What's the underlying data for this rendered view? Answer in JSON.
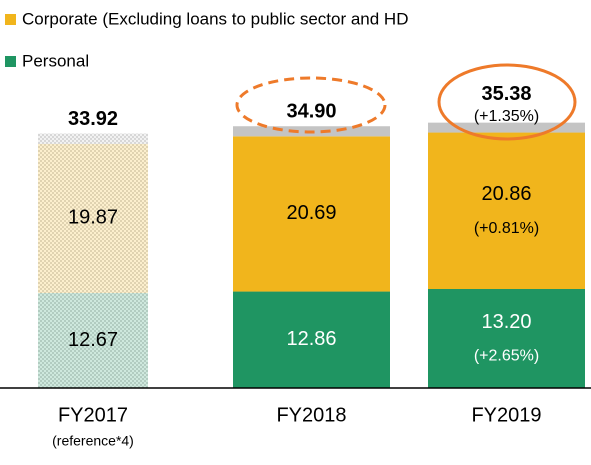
{
  "chart_data": {
    "type": "stacked_bar",
    "categories": [
      "FY2017",
      "FY2018",
      "FY2019"
    ],
    "category_notes": [
      "(reference*4)",
      null,
      null
    ],
    "hatched": [
      true,
      false,
      false
    ],
    "series": [
      {
        "name": "Personal",
        "color": "#1f9562",
        "values": [
          12.67,
          12.86,
          13.2
        ],
        "value_labels": [
          "12.67",
          "12.86",
          "13.20"
        ],
        "changes": [
          null,
          null,
          "(+2.65%)"
        ]
      },
      {
        "name": "Corporate (Excluding loans to public sector and HD",
        "color": "#f1b51c",
        "values": [
          19.87,
          20.69,
          20.86
        ],
        "value_labels": [
          "19.87",
          "20.69",
          "20.86"
        ],
        "changes": [
          null,
          null,
          "(+0.81%)"
        ]
      },
      {
        "color": "#c4c4c4",
        "values": [
          1.38,
          1.35,
          1.32
        ]
      }
    ],
    "totals": [
      33.92,
      34.9,
      35.38
    ],
    "total_labels": [
      "33.92",
      "34.90",
      "35.38"
    ],
    "total_changes": [
      null,
      null,
      "(+1.35%)"
    ],
    "ylim": [
      0,
      50
    ]
  }
}
